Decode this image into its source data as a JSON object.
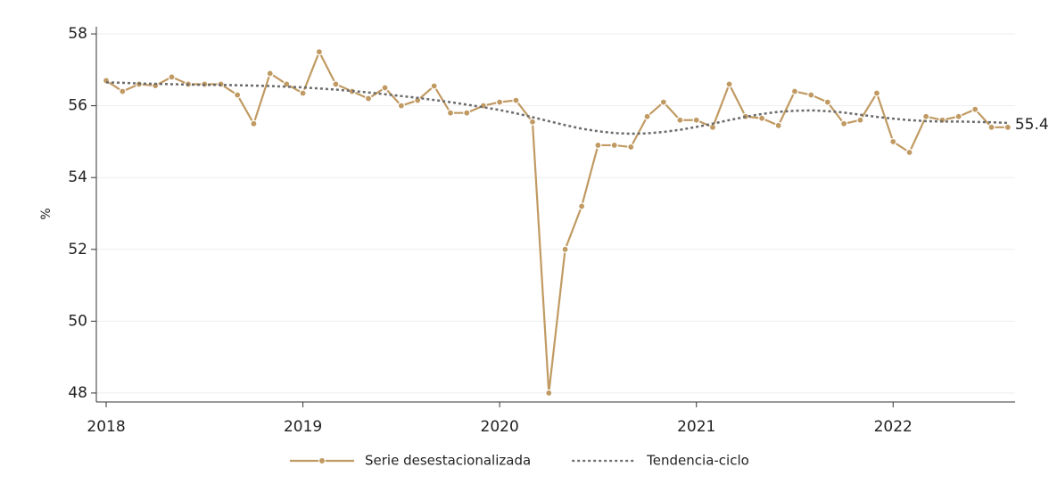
{
  "chart_data": {
    "type": "line",
    "ylabel": "%",
    "x": [
      2018,
      2018.083,
      2018.167,
      2018.25,
      2018.333,
      2018.417,
      2018.5,
      2018.583,
      2018.667,
      2018.75,
      2018.833,
      2018.917,
      2019,
      2019.083,
      2019.167,
      2019.25,
      2019.333,
      2019.417,
      2019.5,
      2019.583,
      2019.667,
      2019.75,
      2019.833,
      2019.917,
      2020,
      2020.083,
      2020.167,
      2020.25,
      2020.333,
      2020.417,
      2020.5,
      2020.583,
      2020.667,
      2020.75,
      2020.833,
      2020.917,
      2021,
      2021.083,
      2021.167,
      2021.25,
      2021.333,
      2021.417,
      2021.5,
      2021.583,
      2021.667,
      2021.75,
      2021.833,
      2021.917,
      2022,
      2022.083,
      2022.167,
      2022.25,
      2022.333,
      2022.417,
      2022.5,
      2022.583
    ],
    "series": [
      {
        "name": "Serie desestacionalizada",
        "color": "#c09a62",
        "style": "solid",
        "markers": true,
        "values": [
          56.7,
          56.4,
          56.6,
          56.56,
          56.8,
          56.6,
          56.6,
          56.6,
          56.3,
          55.5,
          56.9,
          56.6,
          56.35,
          57.5,
          56.6,
          56.4,
          56.2,
          56.5,
          56.0,
          56.15,
          56.55,
          55.8,
          55.8,
          56.0,
          56.1,
          56.15,
          55.55,
          48.0,
          52.0,
          53.2,
          54.9,
          54.9,
          54.85,
          55.7,
          56.1,
          55.6,
          55.6,
          55.4,
          56.6,
          55.7,
          55.65,
          55.45,
          56.4,
          56.3,
          56.1,
          55.5,
          55.6,
          56.35,
          55.0,
          54.7,
          55.7,
          55.6,
          55.7,
          55.9,
          55.4,
          55.4
        ]
      },
      {
        "name": "Tendencia-ciclo",
        "color": "#6b6b6b",
        "style": "dotted",
        "markers": false,
        "values": [
          56.65,
          56.64,
          56.62,
          56.61,
          56.6,
          56.59,
          56.58,
          56.58,
          56.57,
          56.56,
          56.55,
          56.53,
          56.51,
          56.48,
          56.45,
          56.41,
          56.37,
          56.32,
          56.27,
          56.22,
          56.16,
          56.1,
          56.03,
          55.96,
          55.88,
          55.79,
          55.68,
          55.57,
          55.46,
          55.36,
          55.29,
          55.24,
          55.22,
          55.23,
          55.27,
          55.33,
          55.41,
          55.5,
          55.6,
          55.69,
          55.77,
          55.83,
          55.86,
          55.87,
          55.85,
          55.81,
          55.75,
          55.69,
          55.64,
          55.6,
          55.57,
          55.56,
          55.56,
          55.55,
          55.54,
          55.52
        ]
      }
    ],
    "xlim": [
      2017.95,
      2022.62
    ],
    "xticks": [
      2018,
      2019,
      2020,
      2021,
      2022
    ],
    "ylim": [
      47.75,
      58.2
    ],
    "yticks": [
      48,
      50,
      52,
      54,
      56,
      58
    ],
    "grid": true,
    "legend": "bottom"
  }
}
